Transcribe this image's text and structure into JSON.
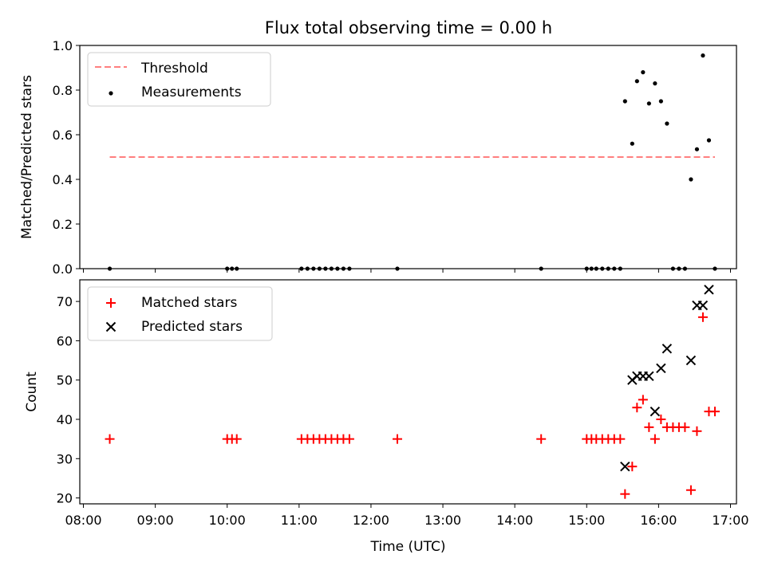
{
  "title": "Flux total observing time = 0.00 h",
  "chart_data": [
    {
      "type": "scatter",
      "ylabel": "Matched/Predicted stars",
      "ylim": [
        0,
        1.0
      ],
      "xlim": [
        "07:57",
        "17:05"
      ],
      "yticks": [
        "0.0",
        "0.2",
        "0.4",
        "0.6",
        "0.8",
        "1.0"
      ],
      "legend_position": "upper-left",
      "legend": [
        {
          "name": "Threshold",
          "style": "dashed-line",
          "color": "#ff7f7f"
        },
        {
          "name": "Measurements",
          "style": "dot",
          "color": "#000000"
        }
      ],
      "threshold": {
        "y": 0.5,
        "x_start": "08:22",
        "x_end": "16:47"
      },
      "series": [
        {
          "name": "Measurements",
          "points": [
            [
              "08:22",
              0.0
            ],
            [
              "10:00",
              0.0
            ],
            [
              "10:04",
              0.0
            ],
            [
              "10:08",
              0.0
            ],
            [
              "11:02",
              0.0
            ],
            [
              "11:07",
              0.0
            ],
            [
              "11:12",
              0.0
            ],
            [
              "11:17",
              0.0
            ],
            [
              "11:22",
              0.0
            ],
            [
              "11:27",
              0.0
            ],
            [
              "11:32",
              0.0
            ],
            [
              "11:37",
              0.0
            ],
            [
              "11:42",
              0.0
            ],
            [
              "12:22",
              0.0
            ],
            [
              "14:22",
              0.0
            ],
            [
              "15:00",
              0.0
            ],
            [
              "15:04",
              0.0
            ],
            [
              "15:08",
              0.0
            ],
            [
              "15:13",
              0.0
            ],
            [
              "15:18",
              0.0
            ],
            [
              "15:23",
              0.0
            ],
            [
              "15:28",
              0.0
            ],
            [
              "15:32",
              0.75
            ],
            [
              "15:38",
              0.56
            ],
            [
              "15:42",
              0.84
            ],
            [
              "15:47",
              0.88
            ],
            [
              "15:52",
              0.74
            ],
            [
              "15:57",
              0.83
            ],
            [
              "16:02",
              0.75
            ],
            [
              "16:07",
              0.65
            ],
            [
              "16:12",
              0.0
            ],
            [
              "16:17",
              0.0
            ],
            [
              "16:22",
              0.0
            ],
            [
              "16:27",
              0.4
            ],
            [
              "16:32",
              0.535
            ],
            [
              "16:37",
              0.955
            ],
            [
              "16:42",
              0.575
            ],
            [
              "16:47",
              0.0
            ]
          ]
        }
      ]
    },
    {
      "type": "scatter",
      "ylabel": "Count",
      "xlabel": "Time (UTC)",
      "ylim": [
        18.5,
        75.5
      ],
      "xlim": [
        "07:57",
        "17:05"
      ],
      "yticks": [
        "20",
        "30",
        "40",
        "50",
        "60",
        "70"
      ],
      "xticks": [
        "08:00",
        "09:00",
        "10:00",
        "11:00",
        "12:00",
        "13:00",
        "14:00",
        "15:00",
        "16:00",
        "17:00"
      ],
      "legend_position": "upper-left",
      "legend": [
        {
          "name": "Matched stars",
          "style": "plus",
          "color": "#ff0000"
        },
        {
          "name": "Predicted stars",
          "style": "x",
          "color": "#000000"
        }
      ],
      "series": [
        {
          "name": "Matched stars",
          "points": [
            [
              "08:22",
              35
            ],
            [
              "10:00",
              35
            ],
            [
              "10:04",
              35
            ],
            [
              "10:08",
              35
            ],
            [
              "11:02",
              35
            ],
            [
              "11:07",
              35
            ],
            [
              "11:12",
              35
            ],
            [
              "11:17",
              35
            ],
            [
              "11:22",
              35
            ],
            [
              "11:27",
              35
            ],
            [
              "11:32",
              35
            ],
            [
              "11:37",
              35
            ],
            [
              "11:42",
              35
            ],
            [
              "12:22",
              35
            ],
            [
              "14:22",
              35
            ],
            [
              "15:00",
              35
            ],
            [
              "15:04",
              35
            ],
            [
              "15:08",
              35
            ],
            [
              "15:13",
              35
            ],
            [
              "15:18",
              35
            ],
            [
              "15:23",
              35
            ],
            [
              "15:28",
              35
            ],
            [
              "15:32",
              21
            ],
            [
              "15:38",
              28
            ],
            [
              "15:42",
              43
            ],
            [
              "15:47",
              45
            ],
            [
              "15:52",
              38
            ],
            [
              "15:57",
              35
            ],
            [
              "16:02",
              40
            ],
            [
              "16:07",
              38
            ],
            [
              "16:12",
              38
            ],
            [
              "16:17",
              38
            ],
            [
              "16:22",
              38
            ],
            [
              "16:27",
              22
            ],
            [
              "16:32",
              37
            ],
            [
              "16:37",
              66
            ],
            [
              "16:42",
              42
            ],
            [
              "16:47",
              42
            ]
          ]
        },
        {
          "name": "Predicted stars",
          "points": [
            [
              "15:32",
              28
            ],
            [
              "15:38",
              50
            ],
            [
              "15:42",
              51
            ],
            [
              "15:47",
              51
            ],
            [
              "15:52",
              51
            ],
            [
              "15:57",
              42
            ],
            [
              "16:02",
              53
            ],
            [
              "16:07",
              58
            ],
            [
              "16:27",
              55
            ],
            [
              "16:32",
              69
            ],
            [
              "16:37",
              69
            ],
            [
              "16:42",
              73
            ]
          ]
        }
      ]
    }
  ]
}
